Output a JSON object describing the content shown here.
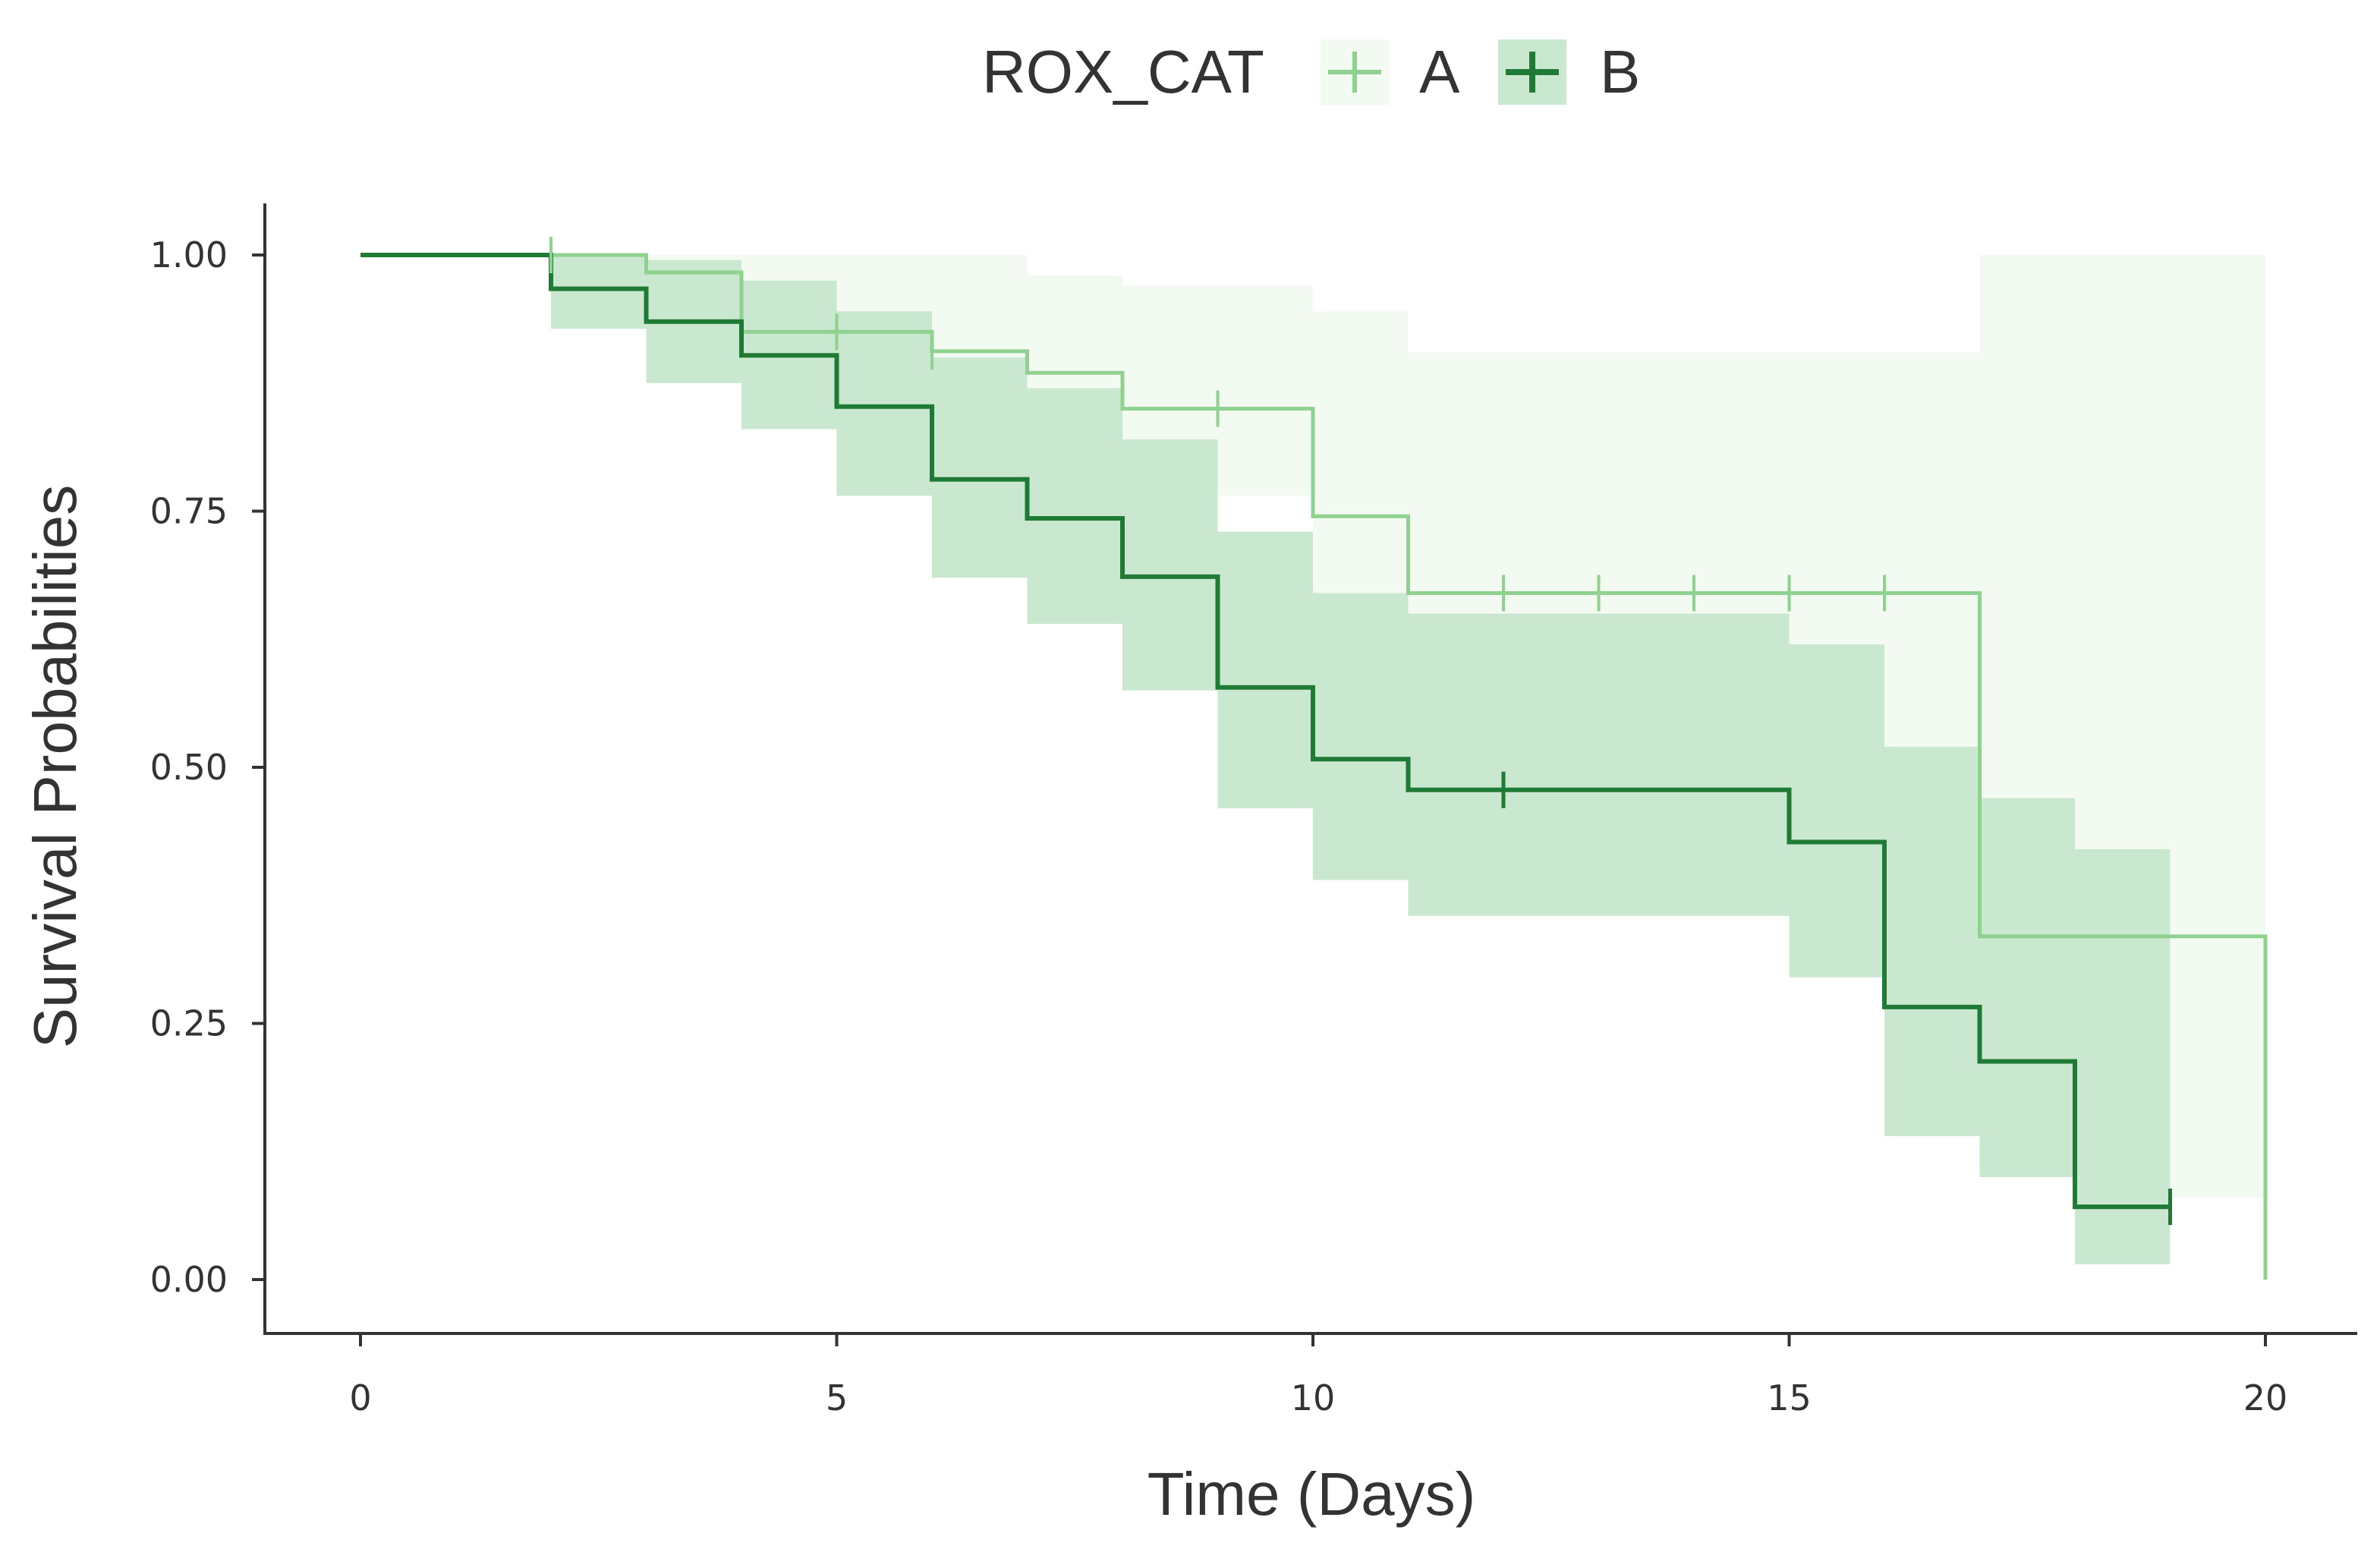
{
  "chart_data": {
    "type": "line",
    "subtype": "kaplan-meier-step",
    "title": "",
    "xlabel": "Time (Days)",
    "ylabel": "Survival Probabilities",
    "xlim": [
      -1,
      20.9
    ],
    "ylim": [
      -0.05,
      1.05
    ],
    "x_ticks": [
      0,
      5,
      10,
      15,
      20
    ],
    "x_tick_labels": [
      "0",
      "5",
      "10",
      "15",
      "20"
    ],
    "y_ticks": [
      0,
      0.25,
      0.5,
      0.75,
      1.0
    ],
    "y_tick_labels": [
      "0.00",
      "0.25",
      "0.50",
      "0.75",
      "1.00"
    ],
    "grid": false,
    "legend": {
      "title": "ROX_CAT",
      "position": "top",
      "entries": [
        "A",
        "B"
      ]
    },
    "series": [
      {
        "name": "A",
        "color": "#8fd18e",
        "band_color": "#f3faf1",
        "steps": [
          [
            0,
            1.0
          ],
          [
            3,
            0.983
          ],
          [
            4,
            0.925
          ],
          [
            6,
            0.906
          ],
          [
            7,
            0.885
          ],
          [
            8,
            0.85
          ],
          [
            10,
            0.745
          ],
          [
            11,
            0.67
          ],
          [
            17,
            0.335
          ],
          [
            20,
            0.0
          ]
        ],
        "end_x": 20,
        "ci_upper": [
          [
            2,
            1.0
          ],
          [
            5,
            1.0
          ],
          [
            7,
            0.98
          ],
          [
            8,
            0.97
          ],
          [
            10,
            0.945
          ],
          [
            11,
            0.905
          ],
          [
            17,
            1.0
          ],
          [
            20,
            1.0
          ]
        ],
        "ci_lower": [
          [
            2,
            0.96
          ],
          [
            3,
            0.93
          ],
          [
            4,
            0.86
          ],
          [
            5,
            0.84
          ],
          [
            6,
            0.815
          ],
          [
            7,
            0.8
          ],
          [
            8,
            0.765
          ],
          [
            10,
            0.615
          ],
          [
            11,
            0.52
          ],
          [
            17,
            0.2
          ],
          [
            18,
            0.08
          ],
          [
            20,
            0.08
          ]
        ],
        "censor_x": [
          2,
          5,
          6,
          9,
          12,
          13,
          14,
          15,
          16
        ]
      },
      {
        "name": "B",
        "color": "#1f7a35",
        "band_color": "#c9e8cf",
        "steps": [
          [
            0,
            1.0
          ],
          [
            2,
            0.967
          ],
          [
            3,
            0.935
          ],
          [
            4,
            0.902
          ],
          [
            5,
            0.852
          ],
          [
            6,
            0.781
          ],
          [
            7,
            0.743
          ],
          [
            8,
            0.686
          ],
          [
            9,
            0.578
          ],
          [
            10,
            0.508
          ],
          [
            11,
            0.478
          ],
          [
            15,
            0.427
          ],
          [
            16,
            0.266
          ],
          [
            17,
            0.213
          ],
          [
            18,
            0.071
          ]
        ],
        "end_x": 19,
        "ci_upper": [
          [
            2,
            1.0
          ],
          [
            3,
            0.995
          ],
          [
            4,
            0.975
          ],
          [
            5,
            0.945
          ],
          [
            6,
            0.9
          ],
          [
            7,
            0.87
          ],
          [
            8,
            0.82
          ],
          [
            9,
            0.73
          ],
          [
            10,
            0.67
          ],
          [
            11,
            0.65
          ],
          [
            15,
            0.62
          ],
          [
            16,
            0.52
          ],
          [
            17,
            0.47
          ],
          [
            18,
            0.42
          ],
          [
            19,
            0.42
          ]
        ],
        "ci_lower": [
          [
            2,
            0.928
          ],
          [
            3,
            0.875
          ],
          [
            4,
            0.83
          ],
          [
            5,
            0.765
          ],
          [
            6,
            0.685
          ],
          [
            7,
            0.64
          ],
          [
            8,
            0.575
          ],
          [
            9,
            0.46
          ],
          [
            10,
            0.39
          ],
          [
            11,
            0.355
          ],
          [
            15,
            0.295
          ],
          [
            16,
            0.14
          ],
          [
            17,
            0.1
          ],
          [
            18,
            0.015
          ],
          [
            19,
            0.015
          ]
        ],
        "censor_x": [
          12,
          19
        ]
      }
    ]
  }
}
